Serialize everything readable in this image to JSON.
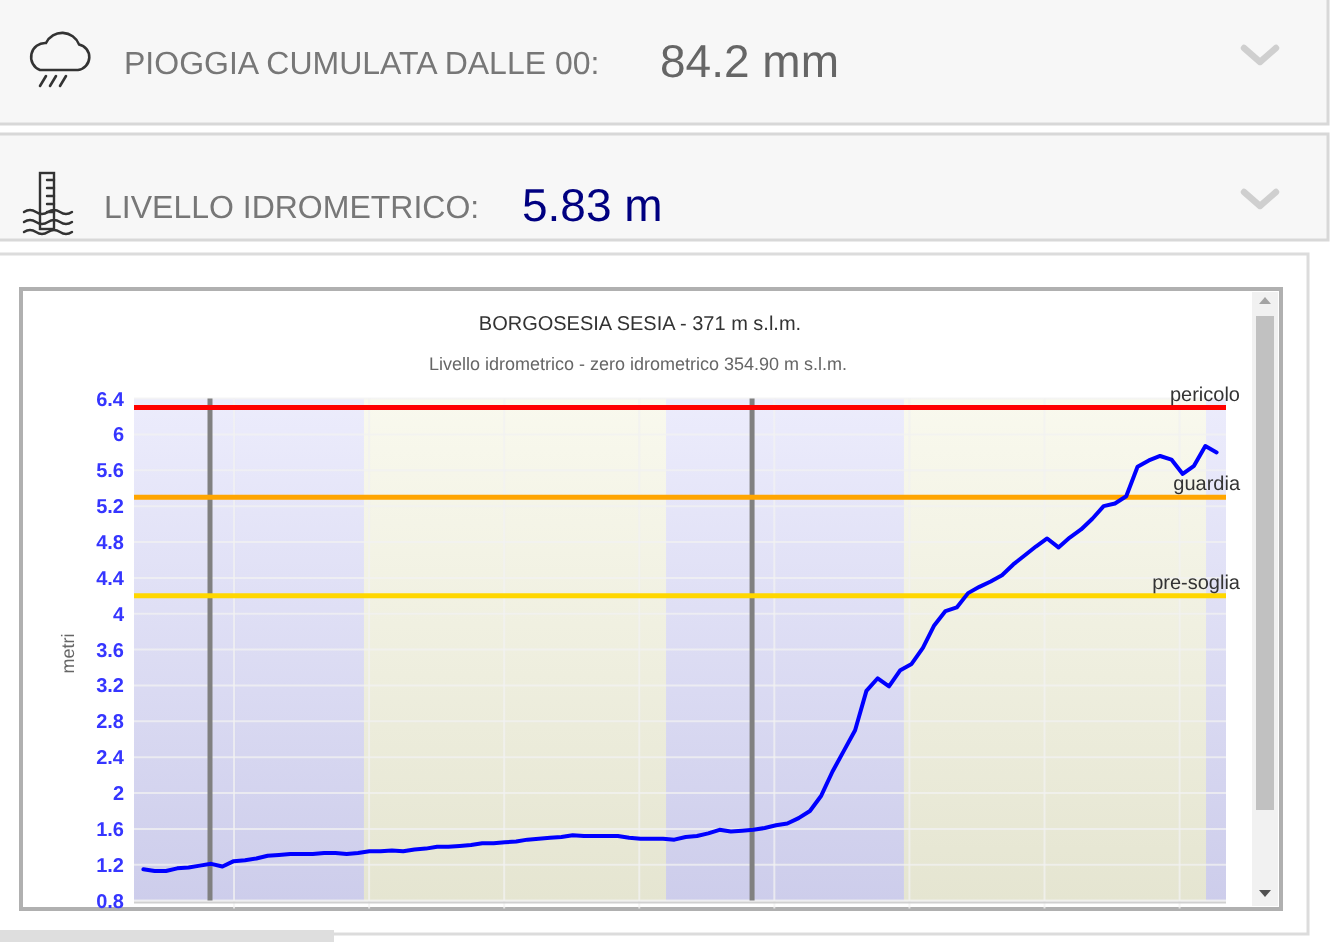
{
  "chart_data": [
    {
      "type": "other",
      "title": "PIOGGIA CUMULATA DALLE 00:",
      "annotations": [
        "84.2 mm"
      ],
      "color": "#666666"
    },
    {
      "type": "other",
      "title": "LIVELLO IDROMETRICO:",
      "annotations": [
        "5.83 m"
      ],
      "color": "#000080"
    },
    {
      "type": "line",
      "title": "BORGOSESIA SESIA - 371 m s.l.m.",
      "subtitle": "Livello idrometrico - zero idrometrico 354.90 m s.l.m.",
      "ylabel": "metri",
      "categories": [
        null,
        null,
        null,
        null,
        null,
        null,
        null,
        null,
        null,
        null,
        null,
        null,
        null,
        null,
        null,
        null,
        null,
        null,
        null,
        null,
        null,
        null,
        null,
        null,
        null,
        null,
        null,
        null,
        null,
        null,
        null,
        null,
        null,
        null,
        null,
        null,
        null,
        null,
        null,
        null,
        null,
        null,
        null,
        null,
        null,
        null,
        null,
        null,
        null,
        null,
        null,
        null,
        null,
        null,
        null,
        null,
        null,
        null,
        null,
        null,
        null,
        null,
        null,
        null,
        null,
        null,
        null,
        null,
        null,
        null,
        null,
        null,
        null,
        null,
        null,
        null,
        null,
        null,
        null,
        null,
        null,
        null,
        null,
        null,
        null,
        null,
        null,
        null,
        null,
        null,
        null,
        null,
        null,
        null,
        null,
        null
      ],
      "series": [
        {
          "color": "#0000ff",
          "values": [
            1.15,
            1.13,
            1.13,
            1.16,
            1.17,
            1.19,
            1.21,
            1.18,
            1.24,
            1.25,
            1.27,
            1.3,
            1.31,
            1.32,
            1.32,
            1.32,
            1.33,
            1.33,
            1.32,
            1.33,
            1.35,
            1.35,
            1.36,
            1.35,
            1.37,
            1.38,
            1.4,
            1.4,
            1.41,
            1.42,
            1.44,
            1.44,
            1.45,
            1.46,
            1.48,
            1.49,
            1.5,
            1.51,
            1.53,
            1.52,
            1.52,
            1.52,
            1.52,
            1.5,
            1.49,
            1.49,
            1.49,
            1.48,
            1.51,
            1.52,
            1.55,
            1.59,
            1.57,
            1.58,
            1.59,
            1.61,
            1.64,
            1.66,
            1.72,
            1.8,
            1.97,
            2.24,
            2.47,
            2.7,
            3.14,
            3.28,
            3.19,
            3.37,
            3.44,
            3.62,
            3.87,
            4.03,
            4.07,
            4.23,
            4.3,
            4.36,
            4.43,
            4.55,
            4.65,
            4.75,
            4.84,
            4.74,
            4.85,
            4.94,
            5.06,
            5.2,
            5.23,
            5.31,
            5.64,
            5.71,
            5.76,
            5.72,
            5.56,
            5.65,
            5.87,
            5.8
          ]
        }
      ],
      "ylim": [
        0.8,
        6.4
      ],
      "yticks": [
        0.8,
        1.2,
        1.6,
        2,
        2.4,
        2.8,
        3.2,
        3.6,
        4,
        4.4,
        4.8,
        5.2,
        5.6,
        6,
        6.4
      ],
      "grid": true,
      "tick_labels": "y",
      "ref_lines": [
        {
          "axis": "y",
          "value": 6.3,
          "label": "pericolo",
          "color": "#ff0000"
        },
        {
          "axis": "y",
          "value": 5.3,
          "label": "guardia",
          "color": "#ffa500"
        },
        {
          "axis": "y",
          "value": 4.2,
          "label": "pre-soglia",
          "color": "#ffd700"
        }
      ]
    }
  ]
}
